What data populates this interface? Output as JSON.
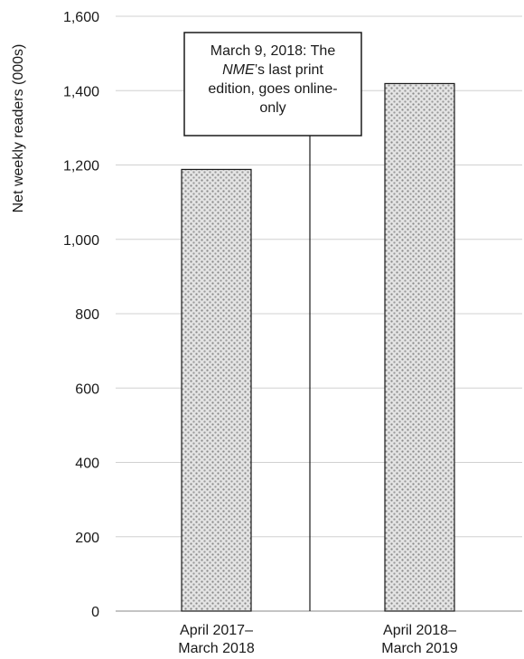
{
  "chart_data": {
    "type": "bar",
    "title": "",
    "xlabel": "",
    "ylabel": "Net weekly readers (000s)",
    "ylim": [
      0,
      1600
    ],
    "yticks": [
      0,
      200,
      400,
      600,
      800,
      1000,
      1200,
      1400,
      1600
    ],
    "ytick_labels": [
      "0",
      "200",
      "400",
      "600",
      "800",
      "1,000",
      "1,200",
      "1,400",
      "1,600"
    ],
    "grid": true,
    "categories": [
      [
        "April 2017–",
        "March 2018"
      ],
      [
        "April 2018–",
        "March 2019"
      ]
    ],
    "values": [
      1188,
      1419
    ],
    "bar_fill": "#c8c8c8",
    "bar_pattern": "dotted",
    "annotation": {
      "lines": [
        [
          {
            "text": "March 9, 2018: The",
            "italic": false
          }
        ],
        [
          {
            "text": "NME",
            "italic": true
          },
          {
            "text": "’s last print",
            "italic": false
          }
        ],
        [
          {
            "text": "edition, goes online-",
            "italic": false
          }
        ],
        [
          {
            "text": "only",
            "italic": false
          }
        ]
      ],
      "position": "between-bars"
    }
  }
}
